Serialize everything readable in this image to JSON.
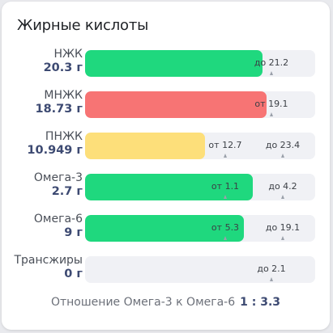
{
  "card": {
    "title": "Жирные кислоты",
    "ratio_label": "Отношение Омега-3 к Омега-6",
    "ratio_value": "1 : 3.3"
  },
  "colors": {
    "green": "#1fd87e",
    "red": "#f77474",
    "yellow": "#fddf7a",
    "track": "#f0f1f5",
    "amount_text": "#3d4a72"
  },
  "rows": [
    {
      "name": "НЖК",
      "amount": "20.3 г",
      "fill_color": "green",
      "fill_fraction": 0.77,
      "markers": [
        {
          "text": "до 21.2",
          "pos_fraction": 0.81
        }
      ]
    },
    {
      "name": "МНЖК",
      "amount": "18.73 г",
      "fill_color": "red",
      "fill_fraction": 0.79,
      "markers": [
        {
          "text": "от 19.1",
          "pos_fraction": 0.81
        }
      ]
    },
    {
      "name": "ПНЖК",
      "amount": "10.949 г",
      "fill_color": "yellow",
      "fill_fraction": 0.52,
      "markers": [
        {
          "text": "от 12.7",
          "pos_fraction": 0.61
        },
        {
          "text": "до 23.4",
          "pos_fraction": 0.86
        }
      ]
    },
    {
      "name": "Омега-3",
      "amount": "2.7 г",
      "fill_color": "green",
      "fill_fraction": 0.73,
      "markers": [
        {
          "text": "от 1.1",
          "pos_fraction": 0.61
        },
        {
          "text": "до 4.2",
          "pos_fraction": 0.86
        }
      ]
    },
    {
      "name": "Омега-6",
      "amount": "9 г",
      "fill_color": "green",
      "fill_fraction": 0.69,
      "markers": [
        {
          "text": "от 5.3",
          "pos_fraction": 0.61
        },
        {
          "text": "до 19.1",
          "pos_fraction": 0.86
        }
      ]
    },
    {
      "name": "Трансжиры",
      "amount": "0 г",
      "fill_color": "green",
      "fill_fraction": 0,
      "markers": [
        {
          "text": "до 2.1",
          "pos_fraction": 0.81
        }
      ]
    }
  ]
}
